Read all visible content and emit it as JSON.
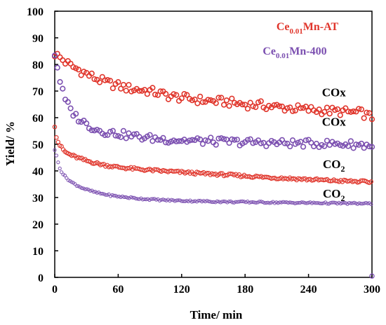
{
  "chart_data": {
    "type": "scatter",
    "xlabel": "Time/ min",
    "ylabel": "Yield/ %",
    "xlim": [
      0,
      300
    ],
    "ylim": [
      0,
      100
    ],
    "xticks": [
      0,
      60,
      120,
      180,
      240,
      300
    ],
    "yticks": [
      0,
      10,
      20,
      30,
      40,
      50,
      60,
      70,
      80,
      90,
      100
    ],
    "grid": false,
    "legend_position": "top-right",
    "legend": [
      {
        "base": "Ce",
        "sub": "0.01",
        "rest": "Mn-AT",
        "color": "#e0352b"
      },
      {
        "base": "Ce",
        "sub": "0.01",
        "rest": "Mn-400",
        "color": "#7b4fb0"
      }
    ],
    "annotations": [
      {
        "text": "COx",
        "sub": "",
        "x": 264,
        "y": 68
      },
      {
        "text": "COx",
        "sub": "",
        "x": 264,
        "y": 57
      },
      {
        "text": "CO",
        "sub": "2",
        "x": 264,
        "y": 41
      },
      {
        "text": "CO",
        "sub": "2",
        "x": 264,
        "y": 30
      }
    ],
    "series": [
      {
        "key": "at_cox",
        "color": "#e0352b",
        "x": [
          0,
          5,
          10,
          15,
          20,
          30,
          40,
          50,
          60,
          70,
          80,
          90,
          100,
          110,
          120,
          130,
          140,
          150,
          160,
          170,
          180,
          190,
          200,
          210,
          220,
          230,
          240,
          250,
          260,
          270,
          280,
          290,
          300
        ],
        "y": [
          84,
          82.5,
          81,
          79.5,
          78.5,
          76.5,
          74.5,
          73,
          72,
          71,
          70.5,
          70,
          69,
          68,
          67.5,
          67,
          66.5,
          66.2,
          66,
          65.5,
          65,
          64.8,
          64.5,
          64,
          63.7,
          63.3,
          63,
          62.8,
          62.5,
          62.3,
          62,
          61.8,
          60
        ]
      },
      {
        "key": "at_co2",
        "color": "#e0352b",
        "x": [
          0,
          2,
          5,
          8,
          10,
          15,
          20,
          25,
          30,
          40,
          50,
          60,
          80,
          100,
          120,
          140,
          160,
          180,
          200,
          220,
          240,
          260,
          280,
          300
        ],
        "y": [
          57,
          52,
          49.5,
          48,
          47,
          46,
          45.2,
          44.5,
          43.8,
          42.8,
          42,
          41.4,
          40.6,
          40,
          39.5,
          39,
          38.6,
          38.1,
          37.6,
          37.2,
          36.8,
          36.4,
          36.1,
          35.8
        ]
      },
      {
        "key": "mn400_cox",
        "color": "#7b4fb0",
        "x": [
          0,
          2,
          4,
          6,
          8,
          10,
          15,
          20,
          25,
          30,
          40,
          50,
          60,
          70,
          80,
          90,
          100,
          120,
          140,
          160,
          180,
          200,
          220,
          240,
          260,
          280,
          300
        ],
        "y": [
          84,
          80,
          76,
          72,
          69,
          66.5,
          63,
          60.5,
          59,
          57.5,
          55.5,
          54.5,
          54,
          53.3,
          52.8,
          52.3,
          52,
          51.5,
          51.2,
          51,
          50.8,
          50.6,
          50.4,
          50.3,
          50.2,
          50,
          49.5
        ]
      },
      {
        "key": "mn400_co2",
        "color": "#7b4fb0",
        "x": [
          0,
          2,
          4,
          6,
          8,
          10,
          15,
          20,
          25,
          30,
          40,
          50,
          60,
          80,
          100,
          120,
          140,
          160,
          180,
          200,
          220,
          240,
          260,
          280,
          300
        ],
        "y": [
          48,
          45,
          42,
          40,
          38.8,
          37.8,
          36,
          34.8,
          33.8,
          33,
          31.8,
          31,
          30.4,
          29.6,
          29.1,
          28.8,
          28.6,
          28.4,
          28.3,
          28.2,
          28.1,
          28,
          27.9,
          27.8,
          27.7
        ]
      }
    ]
  }
}
